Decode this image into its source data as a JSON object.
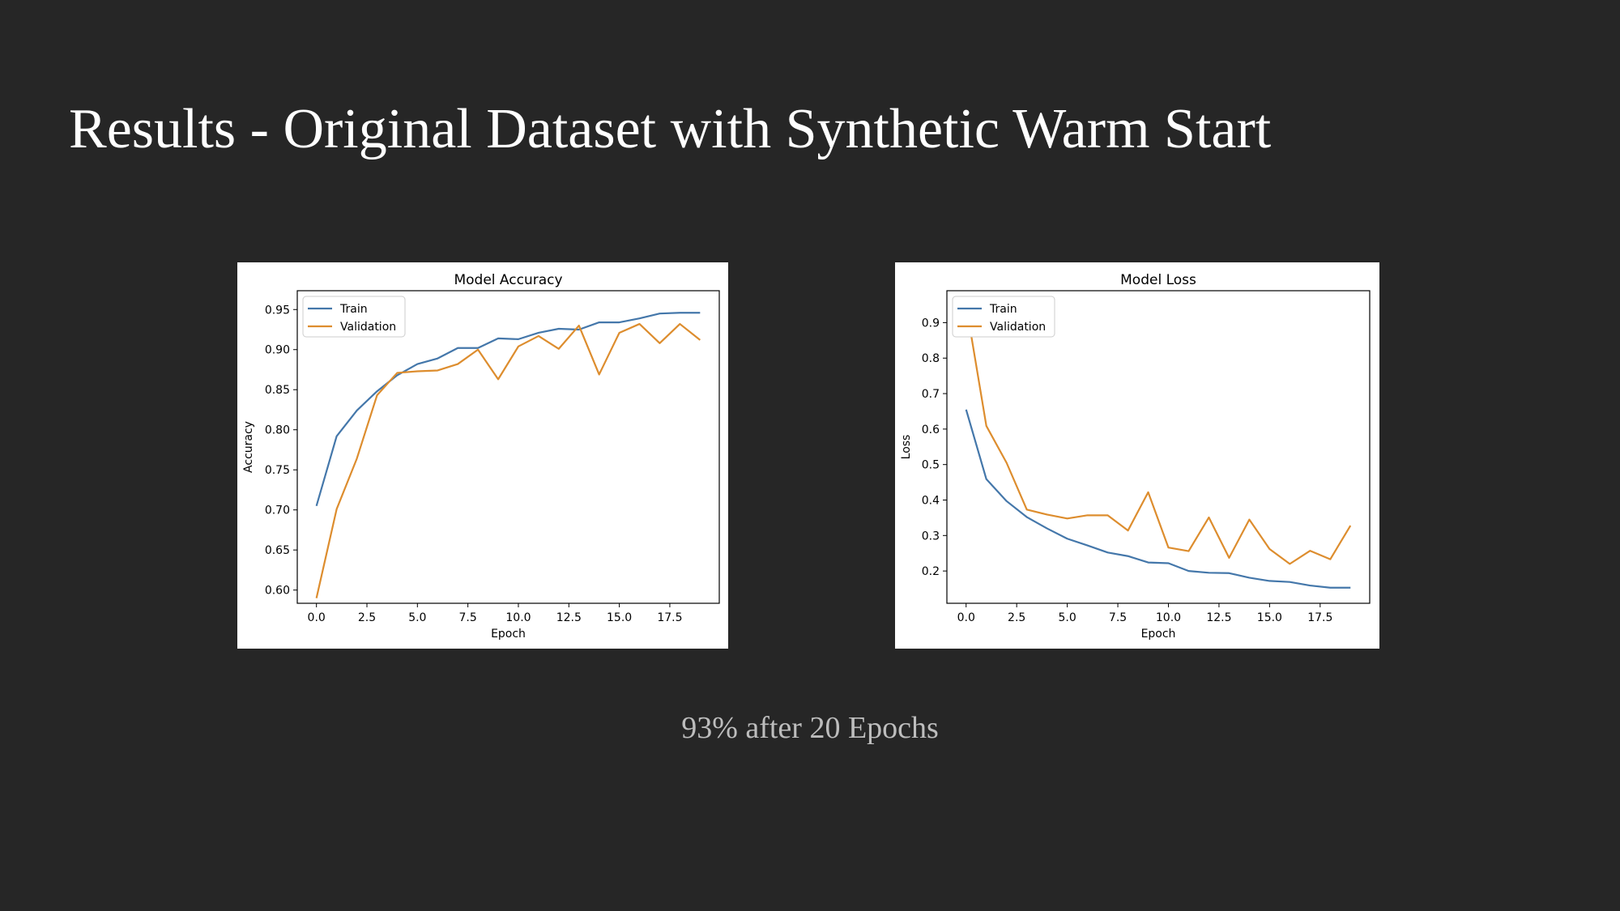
{
  "slide": {
    "title": "Results - Original Dataset with Synthetic Warm Start",
    "caption": "93% after 20 Epochs"
  },
  "colors": {
    "background": "#262626",
    "train": "#4477aa",
    "validation": "#dd8d2e"
  },
  "chart_data": [
    {
      "type": "line",
      "title": "Model Accuracy",
      "xlabel": "Epoch",
      "ylabel": "Accuracy",
      "xlim": [
        -0.95,
        19.95
      ],
      "ylim": [
        0.5835,
        0.9735
      ],
      "xticks": [
        0.0,
        2.5,
        5.0,
        7.5,
        10.0,
        12.5,
        15.0,
        17.5
      ],
      "xtick_labels": [
        "0.0",
        "2.5",
        "5.0",
        "7.5",
        "10.0",
        "12.5",
        "15.0",
        "17.5"
      ],
      "yticks": [
        0.6,
        0.65,
        0.7,
        0.75,
        0.8,
        0.85,
        0.9,
        0.95
      ],
      "ytick_labels": [
        "0.60",
        "0.65",
        "0.70",
        "0.75",
        "0.80",
        "0.85",
        "0.90",
        "0.95"
      ],
      "legend": "upper-left",
      "grid": false,
      "x": [
        0,
        1,
        2,
        3,
        4,
        5,
        6,
        7,
        8,
        9,
        10,
        11,
        12,
        13,
        14,
        15,
        16,
        17,
        18,
        19
      ],
      "series": [
        {
          "name": "Train",
          "color": "#4477aa",
          "values": [
            0.705,
            0.792,
            0.824,
            0.848,
            0.868,
            0.882,
            0.889,
            0.902,
            0.902,
            0.914,
            0.913,
            0.921,
            0.926,
            0.925,
            0.934,
            0.934,
            0.939,
            0.945,
            0.946,
            0.946
          ]
        },
        {
          "name": "Validation",
          "color": "#dd8d2e",
          "values": [
            0.59,
            0.701,
            0.764,
            0.843,
            0.871,
            0.873,
            0.874,
            0.882,
            0.9,
            0.863,
            0.904,
            0.917,
            0.901,
            0.93,
            0.869,
            0.921,
            0.932,
            0.908,
            0.932,
            0.912
          ]
        }
      ]
    },
    {
      "type": "line",
      "title": "Model Loss",
      "xlabel": "Epoch",
      "ylabel": "Loss",
      "xlim": [
        -0.95,
        19.95
      ],
      "ylim": [
        0.109,
        0.99
      ],
      "xticks": [
        0.0,
        2.5,
        5.0,
        7.5,
        10.0,
        12.5,
        15.0,
        17.5
      ],
      "xtick_labels": [
        "0.0",
        "2.5",
        "5.0",
        "7.5",
        "10.0",
        "12.5",
        "15.0",
        "17.5"
      ],
      "yticks": [
        0.2,
        0.3,
        0.4,
        0.5,
        0.6,
        0.7,
        0.8,
        0.9
      ],
      "ytick_labels": [
        "0.2",
        "0.3",
        "0.4",
        "0.5",
        "0.6",
        "0.7",
        "0.8",
        "0.9"
      ],
      "legend": "upper-left",
      "grid": false,
      "x": [
        0,
        1,
        2,
        3,
        4,
        5,
        6,
        7,
        8,
        9,
        10,
        11,
        12,
        13,
        14,
        15,
        16,
        17,
        18,
        19
      ],
      "series": [
        {
          "name": "Train",
          "color": "#4477aa",
          "values": [
            0.655,
            0.459,
            0.397,
            0.352,
            0.32,
            0.291,
            0.272,
            0.252,
            0.242,
            0.224,
            0.222,
            0.2,
            0.195,
            0.194,
            0.181,
            0.172,
            0.169,
            0.159,
            0.153,
            0.153
          ]
        },
        {
          "name": "Validation",
          "color": "#dd8d2e",
          "values": [
            0.95,
            0.609,
            0.505,
            0.373,
            0.359,
            0.348,
            0.357,
            0.357,
            0.314,
            0.422,
            0.266,
            0.256,
            0.351,
            0.237,
            0.345,
            0.262,
            0.22,
            0.257,
            0.233,
            0.328
          ]
        }
      ]
    }
  ]
}
